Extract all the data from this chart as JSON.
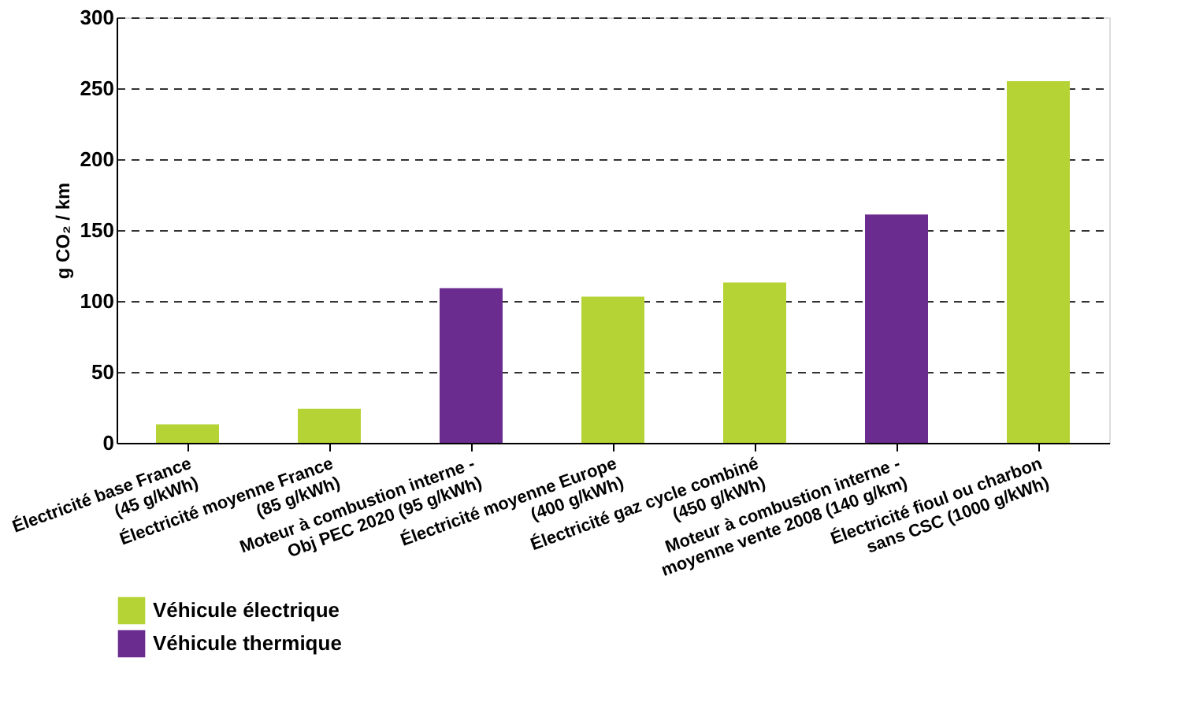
{
  "chart_data": {
    "type": "bar",
    "ylabel": "g CO₂ / km",
    "categories": [
      "Électricité base France\n(45 g/kWh)",
      "Électricité moyenne France\n(85 g/kWh)",
      "Moteur à combustion interne -\nObj PEC 2020 (95 g/kWh)",
      "Électricité moyenne Europe\n(400 g/kWh)",
      "Électricité gaz cycle combiné\n(450 g/kWh)",
      "Moteur à combustion interne -\nmoyenne vente 2008 (140 g/km)",
      "Électricité fioul ou charbon\nsans CSC (1000 g/kWh)"
    ],
    "series": [
      {
        "name": "Véhicule électrique",
        "color": "#b5d334",
        "values": [
          13,
          24,
          null,
          103,
          113,
          null,
          255
        ]
      },
      {
        "name": "Véhicule thermique",
        "color": "#6a2c8e",
        "values": [
          null,
          null,
          109,
          null,
          null,
          161,
          null
        ]
      }
    ],
    "ylim": [
      0,
      300
    ],
    "yticks": [
      0,
      50,
      100,
      150,
      200,
      250,
      300
    ],
    "grid": "y",
    "legend": "bottom left"
  }
}
